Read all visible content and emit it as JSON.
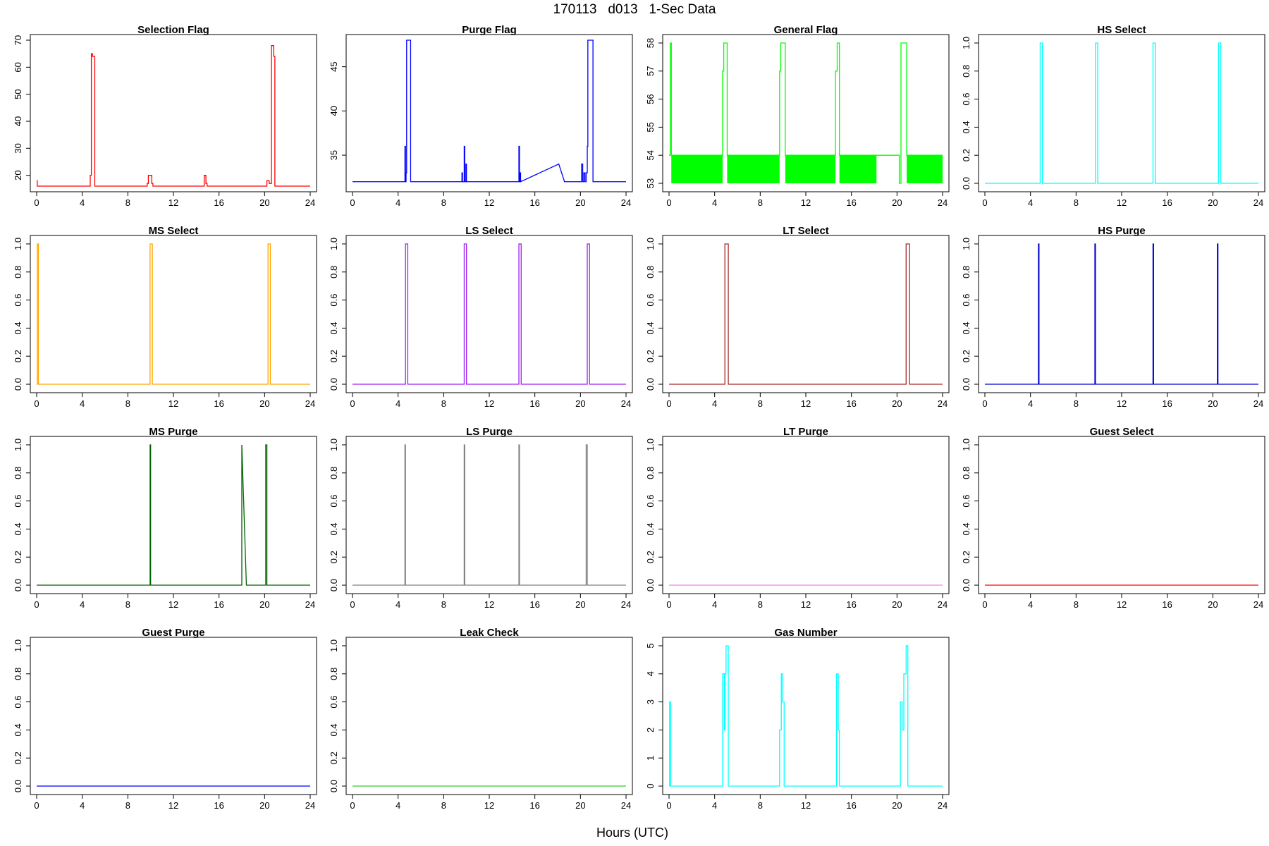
{
  "title": "170113   d013   1-Sec Data",
  "xlabel": "Hours (UTC)",
  "chart_data": [
    {
      "type": "line",
      "title": "Selection Flag",
      "color": "#ff0000",
      "xlim": [
        0,
        24
      ],
      "ylim": [
        16,
        70
      ],
      "xticks": [
        0,
        4,
        8,
        12,
        16,
        20,
        24
      ],
      "yticks": [
        20,
        30,
        40,
        50,
        60,
        70
      ],
      "x": [
        0,
        0.05,
        0.05,
        0.15,
        0.15,
        4.7,
        4.7,
        4.8,
        4.8,
        4.9,
        4.9,
        5.1,
        5.1,
        5.2,
        5.2,
        9.7,
        9.7,
        9.8,
        9.8,
        10.1,
        10.1,
        10.2,
        10.2,
        14.7,
        14.7,
        14.85,
        14.85,
        14.95,
        14.95,
        20.2,
        20.2,
        20.4,
        20.4,
        20.6,
        20.6,
        20.8,
        20.8,
        20.9,
        20.9,
        24
      ],
      "y": [
        18,
        18,
        16,
        16,
        16,
        16,
        20,
        20,
        65,
        65,
        64,
        64,
        16,
        16,
        16,
        16,
        17,
        17,
        20,
        20,
        17,
        17,
        16,
        16,
        20,
        20,
        17,
        17,
        16,
        16,
        18,
        18,
        17,
        17,
        68,
        68,
        64,
        64,
        16,
        16
      ]
    },
    {
      "type": "line",
      "title": "Purge Flag",
      "color": "#0000ff",
      "xlim": [
        0,
        24
      ],
      "ylim": [
        31.5,
        48
      ],
      "xticks": [
        0,
        4,
        8,
        12,
        16,
        20,
        24
      ],
      "yticks": [
        35,
        40,
        45
      ],
      "x": [
        0,
        4.6,
        4.6,
        4.65,
        4.65,
        4.7,
        4.7,
        4.75,
        4.75,
        4.8,
        4.8,
        5.1,
        5.1,
        9.6,
        9.6,
        9.65,
        9.65,
        9.8,
        9.8,
        9.85,
        9.85,
        9.95,
        9.95,
        10.0,
        10.0,
        14.6,
        14.6,
        14.65,
        14.65,
        14.7,
        14.7,
        14.75,
        14.75,
        18.1,
        18.6,
        20.1,
        20.1,
        20.2,
        20.2,
        20.3,
        20.3,
        20.4,
        20.4,
        20.5,
        20.5,
        20.6,
        20.6,
        20.65,
        20.65,
        21.1,
        21.1,
        24
      ],
      "y": [
        32,
        32,
        36,
        36,
        32,
        32,
        33,
        33,
        48,
        48,
        48,
        48,
        32,
        32,
        33,
        33,
        32,
        32,
        36,
        36,
        32,
        32,
        34,
        34,
        32,
        32,
        36,
        36,
        32,
        32,
        33,
        33,
        32,
        34,
        32,
        32,
        34,
        34,
        32,
        32,
        33,
        33,
        32,
        32,
        33,
        33,
        36,
        36,
        48,
        48,
        32,
        32
      ]
    },
    {
      "type": "area",
      "title": "General Flag",
      "color": "#00ff00",
      "xlim": [
        0,
        24
      ],
      "ylim": [
        52.9,
        58.1
      ],
      "xticks": [
        0,
        4,
        8,
        12,
        16,
        20,
        24
      ],
      "yticks": [
        53,
        54,
        55,
        56,
        57,
        58
      ],
      "x": [
        0,
        0.1,
        0.1,
        0.2,
        0.2,
        4.7,
        4.7,
        4.8,
        4.8,
        5.1,
        5.1,
        9.7,
        9.7,
        9.8,
        9.8,
        10.2,
        10.2,
        14.6,
        14.6,
        14.75,
        14.75,
        14.95,
        14.95,
        18.2,
        20.2,
        20.2,
        20.35,
        20.35,
        20.85,
        20.85,
        24
      ],
      "y": [
        54,
        54,
        58,
        58,
        54,
        54,
        57,
        57,
        58,
        58,
        54,
        54,
        57,
        57,
        58,
        58,
        54,
        54,
        57,
        57,
        58,
        58,
        54,
        54,
        54,
        53,
        53,
        58,
        58,
        54,
        54
      ],
      "band": [
        [
          0.2,
          4.7
        ],
        [
          5.1,
          9.7
        ],
        [
          10.2,
          14.6
        ],
        [
          14.95,
          18.2
        ],
        [
          20.85,
          24
        ]
      ]
    },
    {
      "type": "line",
      "title": "HS Select",
      "color": "#00ffff",
      "xlim": [
        0,
        24
      ],
      "ylim": [
        -0.02,
        1.02
      ],
      "xticks": [
        0,
        4,
        8,
        12,
        16,
        20,
        24
      ],
      "yticks": [
        0.0,
        0.2,
        0.4,
        0.6,
        0.8,
        1.0
      ],
      "x": [
        0,
        4.85,
        4.85,
        5.05,
        5.05,
        9.7,
        9.7,
        9.9,
        9.9,
        14.75,
        14.75,
        14.95,
        14.95,
        20.5,
        20.5,
        20.7,
        20.7,
        24
      ],
      "y": [
        0,
        0,
        1,
        1,
        0,
        0,
        1,
        1,
        0,
        0,
        1,
        1,
        0,
        0,
        1,
        1,
        0,
        0
      ]
    },
    {
      "type": "line",
      "title": "MS Select",
      "color": "#ffa500",
      "xlim": [
        0,
        24
      ],
      "ylim": [
        -0.02,
        1.02
      ],
      "xticks": [
        0,
        4,
        8,
        12,
        16,
        20,
        24
      ],
      "yticks": [
        0.0,
        0.2,
        0.4,
        0.6,
        0.8,
        1.0
      ],
      "x": [
        0,
        0.05,
        0.05,
        0.15,
        0.15,
        9.95,
        9.95,
        10.15,
        10.15,
        20.3,
        20.3,
        20.5,
        20.5,
        24
      ],
      "y": [
        0,
        0,
        1,
        1,
        0,
        0,
        1,
        1,
        0,
        0,
        1,
        1,
        0,
        0
      ]
    },
    {
      "type": "line",
      "title": "LS Select",
      "color": "#a020f0",
      "xlim": [
        0,
        24
      ],
      "ylim": [
        -0.02,
        1.02
      ],
      "xticks": [
        0,
        4,
        8,
        12,
        16,
        20,
        24
      ],
      "yticks": [
        0.0,
        0.2,
        0.4,
        0.6,
        0.8,
        1.0
      ],
      "x": [
        0,
        4.65,
        4.65,
        4.85,
        4.85,
        9.8,
        9.8,
        10.0,
        10.0,
        14.6,
        14.6,
        14.8,
        14.8,
        20.6,
        20.6,
        20.8,
        20.8,
        24
      ],
      "y": [
        0,
        0,
        1,
        1,
        0,
        0,
        1,
        1,
        0,
        0,
        1,
        1,
        0,
        0,
        1,
        1,
        0,
        0
      ]
    },
    {
      "type": "line",
      "title": "LT Select",
      "color": "#a52a2a",
      "xlim": [
        0,
        24
      ],
      "ylim": [
        -0.02,
        1.02
      ],
      "xticks": [
        0,
        4,
        8,
        12,
        16,
        20,
        24
      ],
      "yticks": [
        0.0,
        0.2,
        0.4,
        0.6,
        0.8,
        1.0
      ],
      "x": [
        0,
        4.9,
        4.9,
        5.2,
        5.2,
        20.8,
        20.8,
        21.1,
        21.1,
        24
      ],
      "y": [
        0,
        0,
        1,
        1,
        0,
        0,
        1,
        1,
        0,
        0
      ]
    },
    {
      "type": "line",
      "title": "HS Purge",
      "color": "#0000cd",
      "xlim": [
        0,
        24
      ],
      "ylim": [
        -0.02,
        1.02
      ],
      "xticks": [
        0,
        4,
        8,
        12,
        16,
        20,
        24
      ],
      "yticks": [
        0.0,
        0.2,
        0.4,
        0.6,
        0.8,
        1.0
      ],
      "x": [
        0,
        4.7,
        4.7,
        4.75,
        4.75,
        9.65,
        9.65,
        9.7,
        9.7,
        14.75,
        14.75,
        14.8,
        14.8,
        20.4,
        20.4,
        20.45,
        20.45,
        24
      ],
      "y": [
        0,
        0,
        1,
        1,
        0,
        0,
        1,
        1,
        0,
        0,
        1,
        1,
        0,
        0,
        1,
        1,
        0,
        0
      ]
    },
    {
      "type": "line",
      "title": "MS Purge",
      "color": "#006400",
      "xlim": [
        0,
        24
      ],
      "ylim": [
        -0.02,
        1.02
      ],
      "xticks": [
        0,
        4,
        8,
        12,
        16,
        20,
        24
      ],
      "yticks": [
        0.0,
        0.2,
        0.4,
        0.6,
        0.8,
        1.0
      ],
      "x": [
        0,
        9.95,
        9.95,
        10.0,
        10.0,
        18.0,
        18.0,
        18.4,
        18.4,
        20.1,
        20.1,
        20.2,
        20.2,
        24
      ],
      "y": [
        0,
        0,
        1,
        1,
        0,
        0,
        1,
        0,
        0,
        0,
        1,
        1,
        0,
        0
      ]
    },
    {
      "type": "line",
      "title": "LS Purge",
      "color": "#808080",
      "xlim": [
        0,
        24
      ],
      "ylim": [
        -0.02,
        1.02
      ],
      "xticks": [
        0,
        4,
        8,
        12,
        16,
        20,
        24
      ],
      "yticks": [
        0.0,
        0.2,
        0.4,
        0.6,
        0.8,
        1.0
      ],
      "x": [
        0,
        4.6,
        4.6,
        4.65,
        4.65,
        9.8,
        9.8,
        9.85,
        9.85,
        14.6,
        14.6,
        14.65,
        14.65,
        20.5,
        20.5,
        20.6,
        20.6,
        24
      ],
      "y": [
        0,
        0,
        1,
        1,
        0,
        0,
        1,
        1,
        0,
        0,
        1,
        1,
        0,
        0,
        1,
        1,
        0,
        0
      ]
    },
    {
      "type": "line",
      "title": "LT Purge",
      "color": "#ee82ee",
      "xlim": [
        0,
        24
      ],
      "ylim": [
        -0.02,
        1.02
      ],
      "xticks": [
        0,
        4,
        8,
        12,
        16,
        20,
        24
      ],
      "yticks": [
        0.0,
        0.2,
        0.4,
        0.6,
        0.8,
        1.0
      ],
      "x": [
        0,
        24
      ],
      "y": [
        0,
        0
      ]
    },
    {
      "type": "line",
      "title": "Guest Select",
      "color": "#ff0000",
      "xlim": [
        0,
        24
      ],
      "ylim": [
        -0.02,
        1.02
      ],
      "xticks": [
        0,
        4,
        8,
        12,
        16,
        20,
        24
      ],
      "yticks": [
        0.0,
        0.2,
        0.4,
        0.6,
        0.8,
        1.0
      ],
      "x": [
        0,
        24
      ],
      "y": [
        0,
        0
      ]
    },
    {
      "type": "line",
      "title": "Guest Purge",
      "color": "#0000ff",
      "xlim": [
        0,
        24
      ],
      "ylim": [
        -0.02,
        1.02
      ],
      "xticks": [
        0,
        4,
        8,
        12,
        16,
        20,
        24
      ],
      "yticks": [
        0.0,
        0.2,
        0.4,
        0.6,
        0.8,
        1.0
      ],
      "x": [
        0,
        24
      ],
      "y": [
        0,
        0
      ]
    },
    {
      "type": "line",
      "title": "Leak Check",
      "color": "#32cd32",
      "xlim": [
        0,
        24
      ],
      "ylim": [
        -0.02,
        1.02
      ],
      "xticks": [
        0,
        4,
        8,
        12,
        16,
        20,
        24
      ],
      "yticks": [
        0.0,
        0.2,
        0.4,
        0.6,
        0.8,
        1.0
      ],
      "x": [
        0,
        24
      ],
      "y": [
        0,
        0
      ]
    },
    {
      "type": "line",
      "title": "Gas Number",
      "color": "#00ffff",
      "xlim": [
        0,
        24
      ],
      "ylim": [
        -0.1,
        5.1
      ],
      "xticks": [
        0,
        4,
        8,
        12,
        16,
        20,
        24
      ],
      "yticks": [
        0,
        1,
        2,
        3,
        4,
        5
      ],
      "x": [
        0,
        0.05,
        0.05,
        0.15,
        0.15,
        4.7,
        4.7,
        4.85,
        4.85,
        4.9,
        4.9,
        5.0,
        5.0,
        5.2,
        5.2,
        9.7,
        9.7,
        9.85,
        9.85,
        9.95,
        9.95,
        10.1,
        10.1,
        14.7,
        14.7,
        14.85,
        14.85,
        14.95,
        14.95,
        20.3,
        20.3,
        20.45,
        20.45,
        20.6,
        20.6,
        20.8,
        20.8,
        20.95,
        20.95,
        24
      ],
      "y": [
        0,
        0,
        3,
        3,
        0,
        0,
        4,
        4,
        2,
        2,
        4,
        4,
        5,
        5,
        0,
        0,
        2,
        2,
        4,
        4,
        3,
        3,
        0,
        0,
        4,
        4,
        2,
        2,
        0,
        0,
        3,
        3,
        2,
        2,
        4,
        4,
        5,
        5,
        0,
        0
      ]
    }
  ]
}
